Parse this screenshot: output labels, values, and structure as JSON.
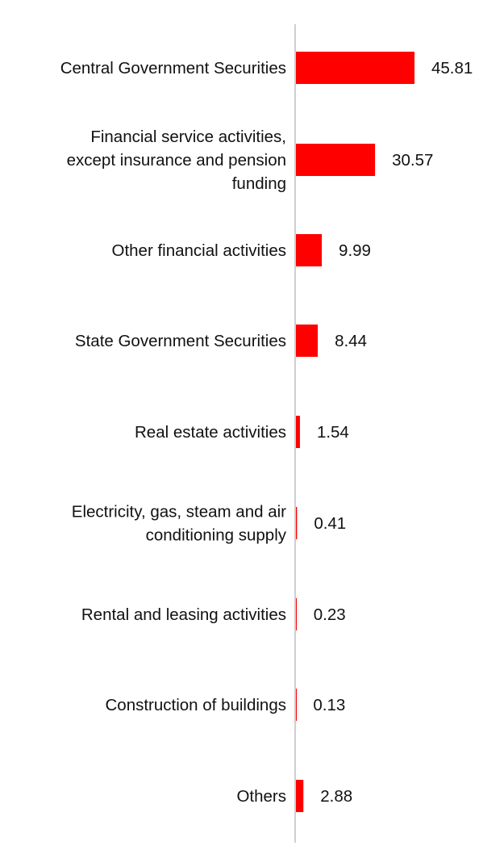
{
  "chart_data": {
    "type": "bar",
    "orientation": "horizontal",
    "categories": [
      "Central Government Securities",
      "Financial service activities, except insurance and pension funding",
      "Other financial activities",
      "State Government Securities",
      "Real estate activities",
      "Electricity, gas, steam and air conditioning supply",
      "Rental and leasing activities",
      "Construction of buildings",
      "Others"
    ],
    "category_label_lines": [
      [
        "Central Government Securities"
      ],
      [
        "Financial service activities,",
        "except insurance and pension",
        "funding"
      ],
      [
        "Other financial activities"
      ],
      [
        "State Government Securities"
      ],
      [
        "Real estate activities"
      ],
      [
        "Electricity, gas, steam and air",
        "conditioning supply"
      ],
      [
        "Rental and leasing activities"
      ],
      [
        "Construction of buildings"
      ],
      [
        "Others"
      ]
    ],
    "values": [
      45.81,
      30.57,
      9.99,
      8.44,
      1.54,
      0.41,
      0.23,
      0.13,
      2.88
    ],
    "value_labels": [
      "45.81",
      "30.57",
      "9.99",
      "8.44",
      "1.54",
      "0.41",
      "0.23",
      "0.13",
      "2.88"
    ],
    "title": "",
    "xlabel": "",
    "ylabel": "",
    "xlim": [
      0,
      50
    ],
    "grid": false,
    "legend": "none",
    "colors": {
      "bar": "#ff0000",
      "axis": "#cfcfcf",
      "text": "#111111"
    }
  }
}
